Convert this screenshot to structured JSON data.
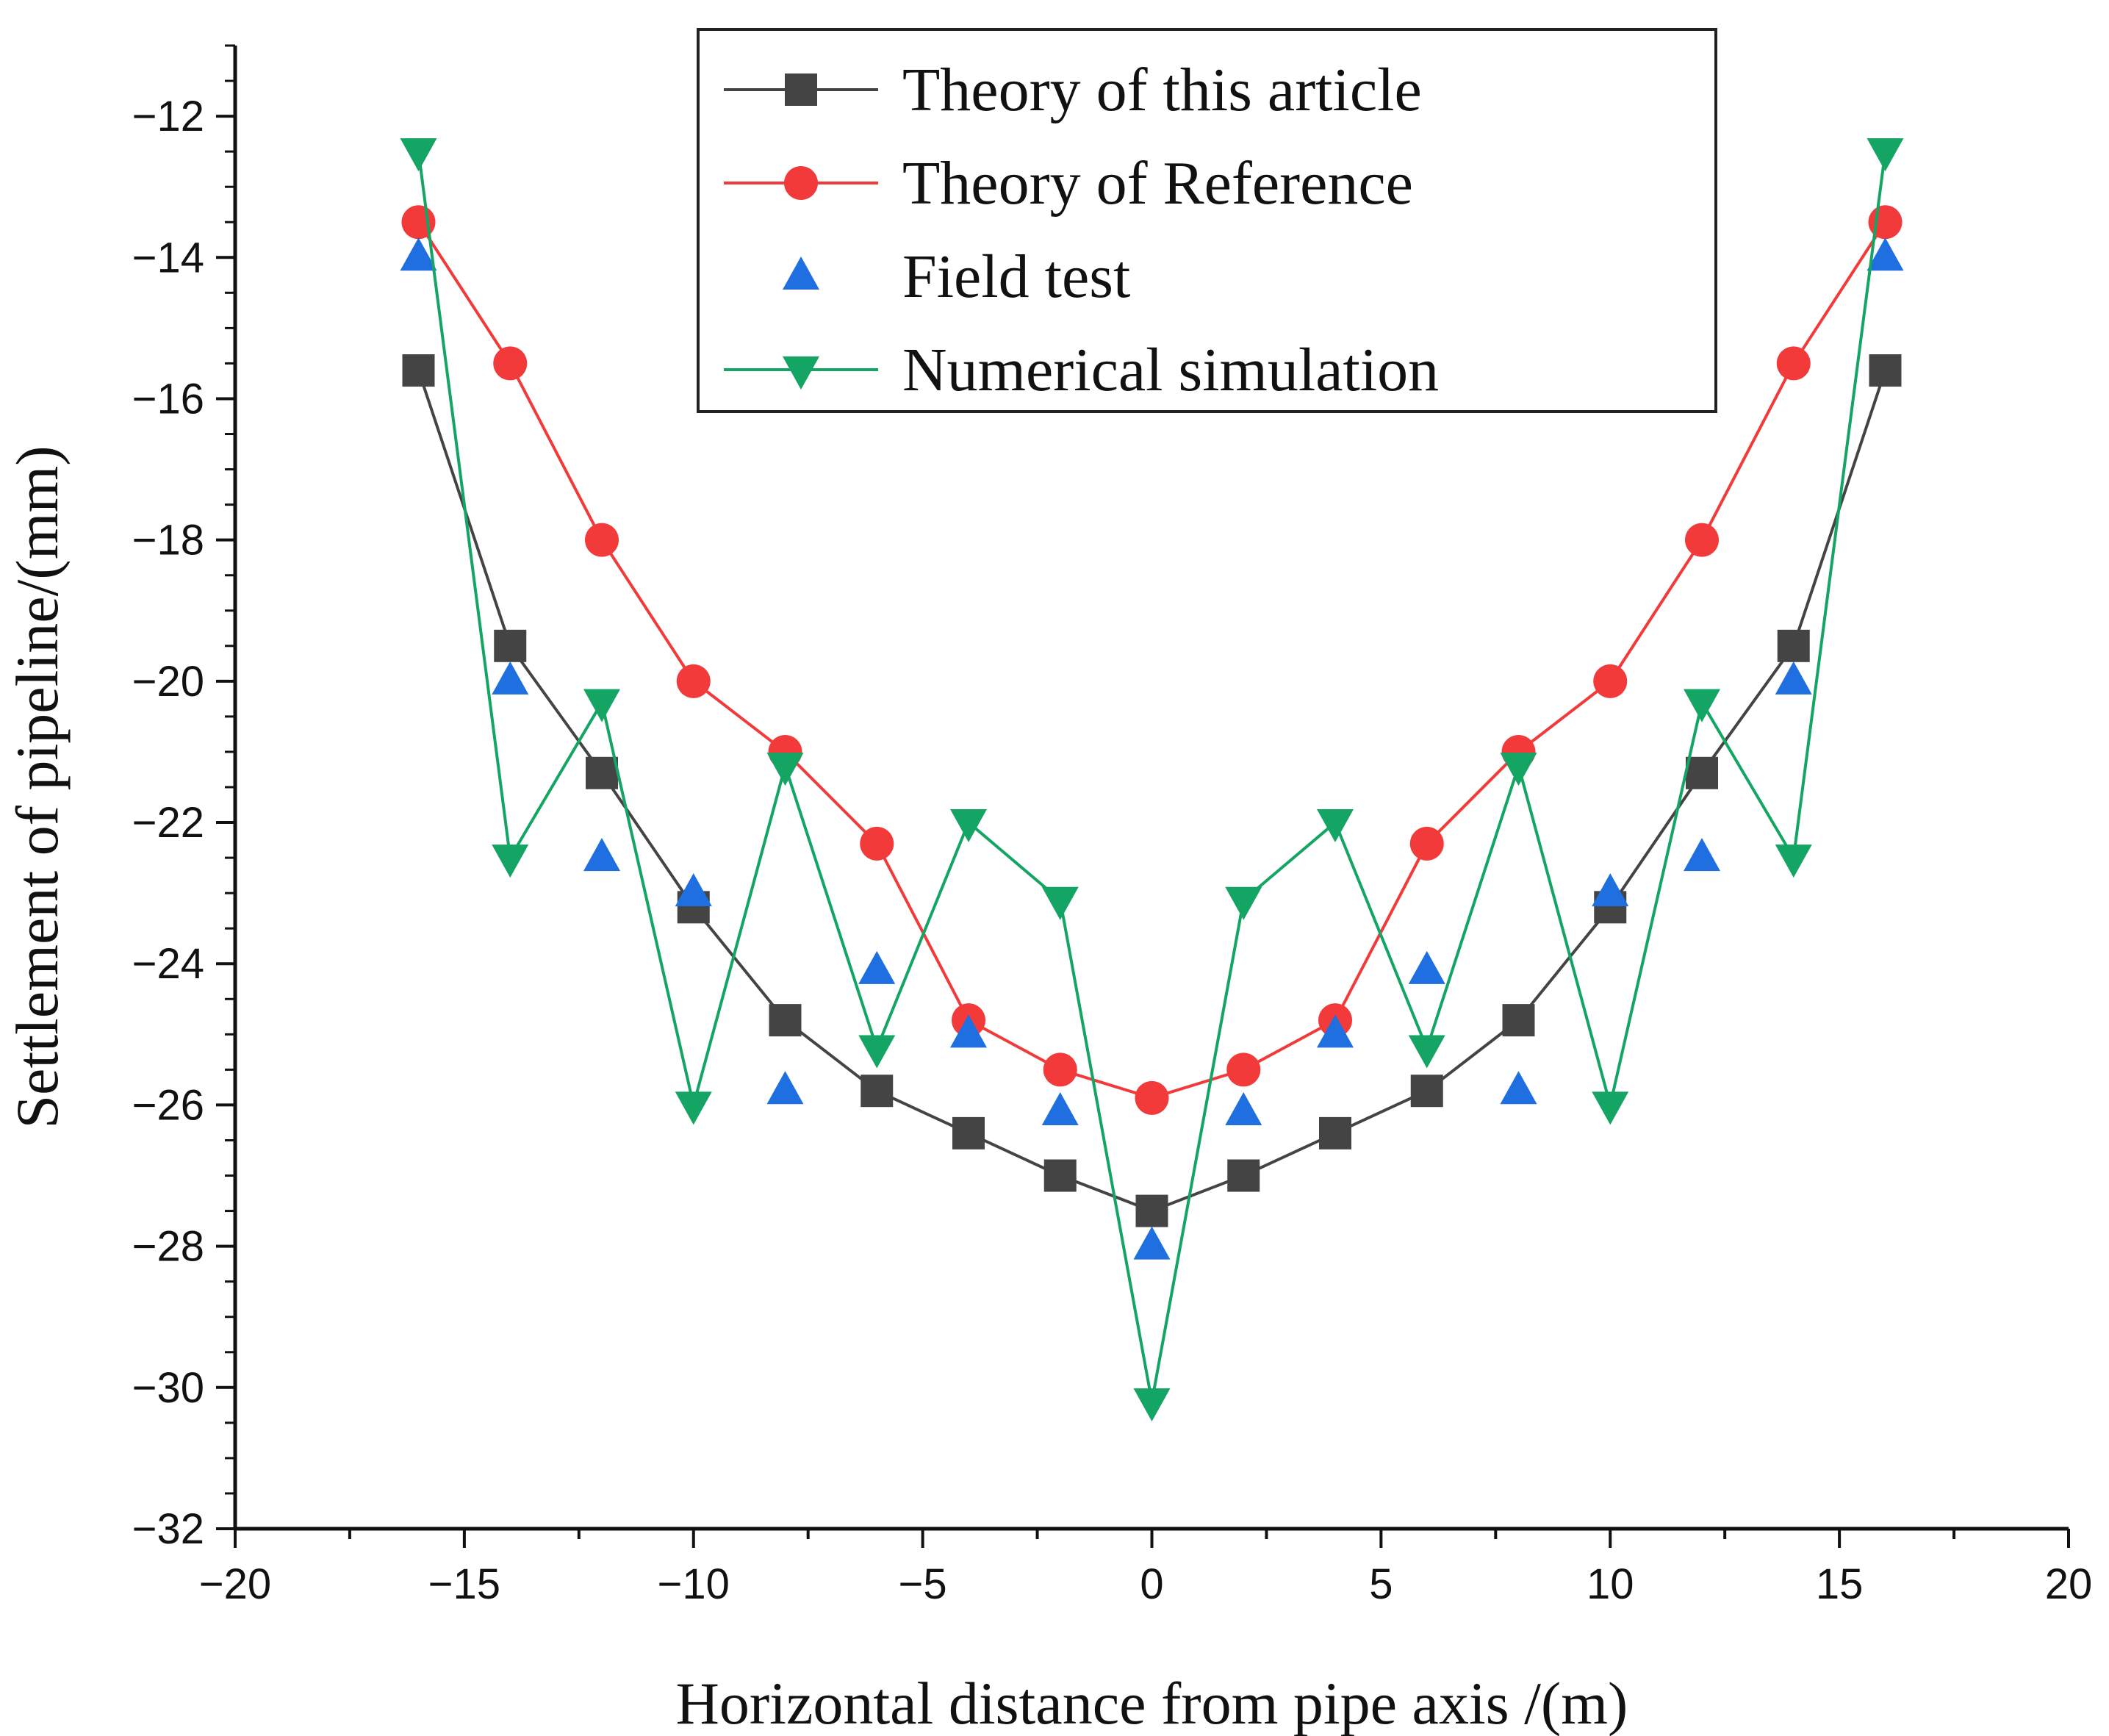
{
  "chart_data": {
    "type": "line",
    "xlabel": "Horizontal distance from pipe axis /(m)",
    "ylabel": "Settlement of pipeline/(mm)",
    "xlim": [
      -20,
      20
    ],
    "ylim": [
      -32,
      -11
    ],
    "xticks": [
      -20,
      -15,
      -10,
      -5,
      0,
      5,
      10,
      15,
      20
    ],
    "yticks": [
      -32,
      -30,
      -28,
      -26,
      -24,
      -22,
      -20,
      -18,
      -16,
      -14,
      -12
    ],
    "xtick_labels": [
      "−20",
      "−15",
      "−10",
      "−5",
      "0",
      "5",
      "10",
      "15",
      "20"
    ],
    "ytick_labels": [
      "−32",
      "−30",
      "−28",
      "−26",
      "−24",
      "−22",
      "−20",
      "−18",
      "−16",
      "−14",
      "−12"
    ],
    "legend_position": "top-center",
    "series": [
      {
        "name": "Theory of this article",
        "color": "#444444",
        "marker": "square",
        "line": true,
        "x": [
          -16,
          -14,
          -12,
          -10,
          -8,
          -6,
          -4,
          -2,
          0,
          2,
          4,
          6,
          8,
          10,
          12,
          14,
          16
        ],
        "y": [
          -15.6,
          -19.5,
          -21.3,
          -23.2,
          -24.8,
          -25.8,
          -26.4,
          -27.0,
          -27.5,
          -27.0,
          -26.4,
          -25.8,
          -24.8,
          -23.2,
          -21.3,
          -19.5,
          -15.6
        ]
      },
      {
        "name": "Theory of Reference",
        "color": "#f23a3a",
        "marker": "circle",
        "line": true,
        "x": [
          -16,
          -14,
          -12,
          -10,
          -8,
          -6,
          -4,
          -2,
          0,
          2,
          4,
          6,
          8,
          10,
          12,
          14,
          16
        ],
        "y": [
          -13.5,
          -15.5,
          -18.0,
          -20.0,
          -21.0,
          -22.3,
          -24.8,
          -25.5,
          -25.9,
          -25.5,
          -24.8,
          -22.3,
          -21.0,
          -20.0,
          -18.0,
          -15.5,
          -13.5
        ]
      },
      {
        "name": "Field test",
        "color": "#1f6fe0",
        "marker": "triangle-up",
        "line": false,
        "x": [
          -16,
          -14,
          -12,
          -10,
          -8,
          -6,
          -4,
          -2,
          0,
          2,
          4,
          6,
          8,
          10,
          12,
          14,
          16
        ],
        "y": [
          -14.0,
          -20.0,
          -22.5,
          -23.0,
          -25.8,
          -24.1,
          -25.0,
          -26.1,
          -28.0,
          -26.1,
          -25.0,
          -24.1,
          -25.8,
          -23.0,
          -22.5,
          -20.0,
          -14.0
        ]
      },
      {
        "name": "Numerical simulation",
        "color": "#14a564",
        "marker": "triangle-down",
        "line": true,
        "x": [
          -16,
          -14,
          -12,
          -10,
          -8,
          -6,
          -4,
          -2,
          0,
          2,
          4,
          6,
          8,
          10,
          12,
          14,
          16
        ],
        "y": [
          -12.5,
          -22.5,
          -20.3,
          -26.0,
          -21.2,
          -25.2,
          -22.0,
          -23.1,
          -30.2,
          -23.1,
          -22.0,
          -25.2,
          -21.2,
          -26.0,
          -20.3,
          -22.5,
          -12.5
        ]
      }
    ]
  }
}
